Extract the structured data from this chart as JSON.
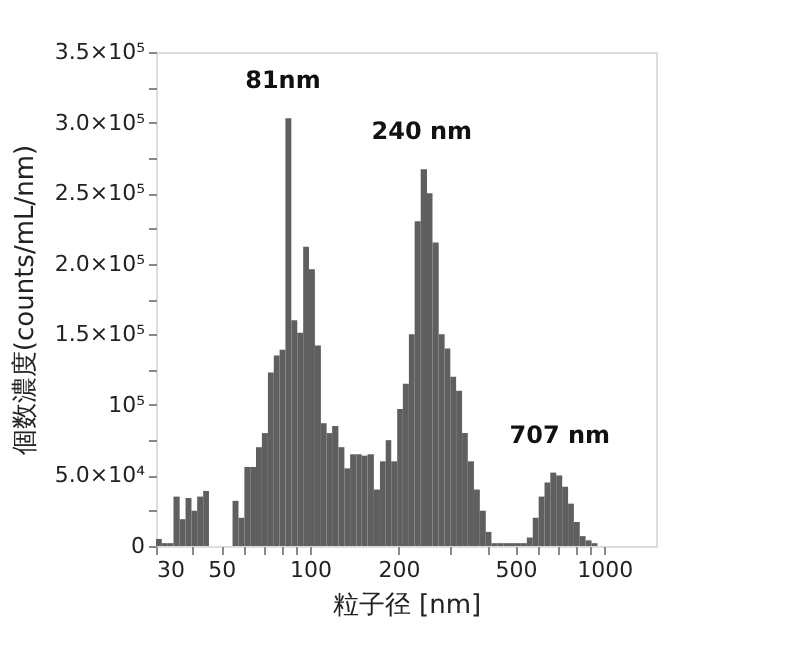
{
  "chart_data": {
    "type": "histogram",
    "xlabel": "粒子径 [nm]",
    "ylabel": "個数濃度(counts/mL/nm)",
    "log": "x",
    "bins": [
      30.0,
      31.4,
      32.9,
      34.4,
      36.1,
      37.8,
      39.6,
      41.4,
      43.4,
      45.4,
      54.6,
      57.2,
      59.9,
      62.7,
      65.6,
      68.7,
      72.0,
      75.4,
      78.9,
      82.6,
      86.5,
      90.6,
      94.9,
      99.3,
      104,
      109,
      114,
      119,
      125,
      131,
      137,
      144,
      150,
      157,
      165,
      173,
      181,
      189,
      198,
      207,
      217,
      227,
      238,
      250,
      261,
      274,
      287,
      300,
      314,
      329,
      344,
      361,
      378,
      396,
      414,
      434,
      454,
      475,
      498,
      521,
      546,
      572,
      599,
      627,
      656,
      687,
      720,
      754,
      789,
      826,
      865,
      906,
      949
    ],
    "values": [
      5000,
      2000,
      2000,
      35000,
      19000,
      34000,
      25000,
      35000,
      39000,
      0,
      32000,
      20000,
      56000,
      56000,
      70000,
      80000,
      123000,
      135000,
      139000,
      303000,
      160000,
      151000,
      212000,
      196000,
      142000,
      87000,
      80000,
      85000,
      70000,
      55000,
      65000,
      65000,
      64000,
      65000,
      40000,
      60000,
      75000,
      60000,
      97000,
      115000,
      150000,
      230000,
      267000,
      250000,
      215000,
      150000,
      140000,
      120000,
      110000,
      80000,
      60000,
      40000,
      25000,
      10000,
      2000,
      2000,
      2000,
      2000,
      2000,
      2000,
      6000,
      20000,
      35000,
      45000,
      52000,
      50000,
      42000,
      30000,
      17000,
      7000,
      4000,
      2000
    ],
    "color": "#5f5f5f",
    "xlim": [
      30,
      1500
    ],
    "xticks": [
      30,
      {
        "value": 40,
        "label": null
      },
      50,
      {
        "value": 60,
        "label": null
      },
      {
        "value": 70,
        "label": null
      },
      {
        "value": 80,
        "label": null
      },
      {
        "value": 90,
        "label": null
      },
      100,
      200,
      {
        "value": 300,
        "label": null
      },
      {
        "value": 400,
        "label": null
      },
      500,
      {
        "value": 600,
        "label": null
      },
      {
        "value": 700,
        "label": null
      },
      {
        "value": 800,
        "label": null
      },
      {
        "value": 900,
        "label": null
      },
      1000
    ],
    "ylim": [
      0,
      350000
    ],
    "yticks": [
      0,
      {
        "value": 25000,
        "label": null
      },
      {
        "value": 50000,
        "label": "5.0×10⁴"
      },
      {
        "value": 75000,
        "label": null
      },
      {
        "value": 100000,
        "label": "10⁵"
      },
      {
        "value": 125000,
        "label": null
      },
      {
        "value": 150000,
        "label": "1.5×10⁵"
      },
      {
        "value": 175000,
        "label": null
      },
      {
        "value": 200000,
        "label": "2.0×10⁵"
      },
      {
        "value": 225000,
        "label": null
      },
      {
        "value": 250000,
        "label": "2.5×10⁵"
      },
      {
        "value": 275000,
        "label": null
      },
      {
        "value": 300000,
        "label": "3.0×10⁵"
      },
      {
        "value": 325000,
        "label": null
      },
      {
        "value": 350000,
        "label": "3.5×10⁵"
      }
    ],
    "grid": false,
    "annotations": [
      {
        "text": "81nm",
        "x": 81,
        "y": 303000
      },
      {
        "text": "240 nm",
        "x": 240,
        "y": 267000
      },
      {
        "text": "707 nm",
        "x": 707,
        "y": 52000
      }
    ]
  }
}
